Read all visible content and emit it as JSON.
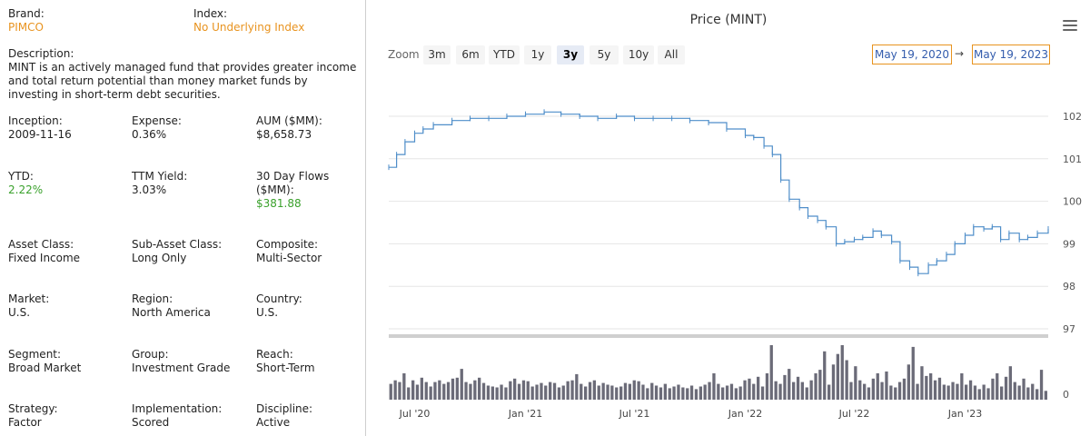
{
  "info": {
    "brand": {
      "label": "Brand:",
      "value": "PIMCO"
    },
    "index": {
      "label": "Index:",
      "value": "No Underlying Index"
    },
    "description": {
      "label": "Description:",
      "value": "MINT is an actively managed fund that provides greater income and total return potential than money market funds by investing in short-term debt securities."
    },
    "rows": [
      [
        {
          "label": "Inception:",
          "value": "2009-11-16"
        },
        {
          "label": "Expense:",
          "value": "0.36%"
        },
        {
          "label": "AUM ($MM):",
          "value": "$8,658.73"
        }
      ],
      [
        {
          "label": "YTD:",
          "value": "2.22%"
        },
        {
          "label": "TTM Yield:",
          "value": "3.03%"
        },
        {
          "label": "30 Day Flows ($MM):",
          "value": "$381.88"
        }
      ],
      [
        {
          "label": "Asset Class:",
          "value": "Fixed Income"
        },
        {
          "label": "Sub-Asset Class:",
          "value": "Long Only"
        },
        {
          "label": "Composite:",
          "value": "Multi-Sector"
        }
      ],
      [
        {
          "label": "Market:",
          "value": "U.S."
        },
        {
          "label": "Region:",
          "value": "North America"
        },
        {
          "label": "Country:",
          "value": "U.S."
        }
      ],
      [
        {
          "label": "Segment:",
          "value": "Broad Market"
        },
        {
          "label": "Group:",
          "value": "Investment Grade"
        },
        {
          "label": "Reach:",
          "value": "Short-Term"
        }
      ],
      [
        {
          "label": "Strategy:",
          "value": "Factor"
        },
        {
          "label": "Implementation:",
          "value": "Scored"
        },
        {
          "label": "Discipline:",
          "value": "Active"
        }
      ]
    ],
    "colors": {
      "accent": "#e8931f",
      "positive": "#3aa12c"
    }
  },
  "chart_header": {
    "title": "Price (MINT)",
    "zoom_label": "Zoom",
    "zoom_buttons": [
      "3m",
      "6m",
      "YTD",
      "1y",
      "3y",
      "5y",
      "10y",
      "All"
    ],
    "active_zoom": "3y",
    "from_date": "May 19, 2020",
    "to_date": "May 19, 2023",
    "arrow": "→",
    "menu_icon": "hamburger-menu-icon"
  },
  "chart_data": {
    "type": "line",
    "title": "Price (MINT)",
    "x_tick_labels": [
      "Jul '20",
      "Jan '21",
      "Jul '21",
      "Jan '22",
      "Jul '22",
      "Jan '23"
    ],
    "y_tick_labels": [
      "102",
      "101",
      "100",
      "99",
      "98",
      "97"
    ],
    "volume_tick_label": "0",
    "ylim": [
      97,
      102.2
    ],
    "grid": true,
    "legend": "none",
    "price": {
      "name": "",
      "x": [
        "2020-05-19",
        "2020-06-01",
        "2020-06-15",
        "2020-07-01",
        "2020-07-15",
        "2020-08-01",
        "2020-09-01",
        "2020-10-01",
        "2020-11-01",
        "2020-12-01",
        "2021-01-01",
        "2021-02-01",
        "2021-03-01",
        "2021-04-01",
        "2021-05-01",
        "2021-06-01",
        "2021-07-01",
        "2021-08-01",
        "2021-09-01",
        "2021-10-01",
        "2021-11-01",
        "2021-12-01",
        "2022-01-01",
        "2022-01-15",
        "2022-02-01",
        "2022-02-15",
        "2022-03-01",
        "2022-03-15",
        "2022-04-01",
        "2022-04-15",
        "2022-05-01",
        "2022-05-15",
        "2022-06-01",
        "2022-06-15",
        "2022-07-01",
        "2022-07-15",
        "2022-08-01",
        "2022-08-15",
        "2022-09-01",
        "2022-09-15",
        "2022-10-01",
        "2022-10-15",
        "2022-11-01",
        "2022-11-15",
        "2022-12-01",
        "2022-12-15",
        "2023-01-01",
        "2023-01-15",
        "2023-02-01",
        "2023-02-15",
        "2023-03-01",
        "2023-03-15",
        "2023-04-01",
        "2023-04-15",
        "2023-05-01",
        "2023-05-19"
      ],
      "values": [
        100.8,
        101.1,
        101.4,
        101.6,
        101.7,
        101.8,
        101.9,
        101.95,
        101.95,
        102.0,
        102.05,
        102.1,
        102.05,
        102.0,
        101.95,
        102.0,
        101.95,
        101.95,
        101.95,
        101.9,
        101.85,
        101.7,
        101.55,
        101.5,
        101.3,
        101.1,
        100.5,
        100.05,
        99.85,
        99.65,
        99.55,
        99.4,
        99.0,
        99.05,
        99.1,
        99.15,
        99.3,
        99.2,
        99.05,
        98.6,
        98.45,
        98.3,
        98.5,
        98.6,
        98.75,
        99.0,
        99.2,
        99.4,
        99.35,
        99.4,
        99.1,
        99.25,
        99.1,
        99.15,
        99.25,
        99.35
      ]
    },
    "volume": {
      "name": "",
      "values": [
        18,
        22,
        20,
        30,
        14,
        22,
        17,
        25,
        20,
        15,
        20,
        22,
        18,
        20,
        24,
        25,
        35,
        20,
        18,
        22,
        25,
        19,
        16,
        15,
        14,
        17,
        14,
        21,
        24,
        18,
        22,
        21,
        15,
        17,
        19,
        16,
        20,
        19,
        14,
        16,
        21,
        22,
        29,
        18,
        15,
        20,
        22,
        16,
        19,
        17,
        16,
        14,
        15,
        19,
        18,
        22,
        21,
        17,
        13,
        19,
        16,
        14,
        18,
        13,
        15,
        17,
        14,
        13,
        16,
        12,
        15,
        17,
        20,
        30,
        18,
        14,
        16,
        18,
        13,
        15,
        22,
        24,
        18,
        26,
        15,
        30,
        62,
        21,
        18,
        28,
        35,
        20,
        26,
        20,
        14,
        22,
        30,
        34,
        55,
        17,
        40,
        52,
        62,
        45,
        20,
        38,
        22,
        18,
        14,
        24,
        30,
        20,
        32,
        16,
        14,
        20,
        24,
        40,
        60,
        18,
        38,
        27,
        30,
        22,
        25,
        17,
        16,
        20,
        18,
        30,
        17,
        22,
        16,
        12,
        17,
        13,
        24,
        30,
        15,
        26,
        38,
        20,
        16,
        24,
        14,
        18,
        12,
        34,
        10
      ]
    },
    "colors": {
      "line": "#4f8ec9",
      "volume": "#6b6b78",
      "grid": "#e6e6e6"
    }
  }
}
